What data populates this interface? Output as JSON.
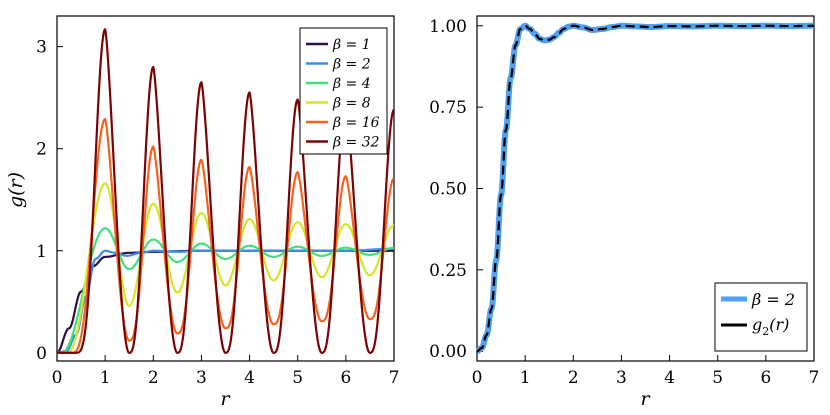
{
  "chart_data": [
    {
      "type": "line",
      "xlabel": "r",
      "ylabel": "g(r)",
      "xlim": [
        0,
        7
      ],
      "ylim": [
        -0.08,
        3.3
      ],
      "xticks": [
        "0",
        "1",
        "2",
        "3",
        "4",
        "5",
        "6",
        "7"
      ],
      "yticks": [
        "0",
        "1",
        "2",
        "3"
      ],
      "grid": false,
      "legend_position": "top-right",
      "series": [
        {
          "name": "β = 1",
          "color": "#2d1147",
          "x": [
            0.0,
            0.25,
            0.5,
            0.75,
            1.0,
            1.5,
            2.0,
            3.0,
            4.0,
            5.0,
            6.0,
            7.0
          ],
          "y": [
            0.0,
            0.24,
            0.6,
            0.85,
            0.94,
            0.98,
            0.99,
            1.0,
            1.0,
            1.0,
            1.0,
            1.0
          ]
        },
        {
          "name": "β = 2",
          "color": "#3a8ef0",
          "x": [
            0.0,
            0.2,
            0.4,
            0.6,
            0.8,
            1.0,
            1.2,
            1.45,
            1.75,
            2.0,
            2.5,
            3.0,
            4.0,
            5.0,
            6.0,
            7.0
          ],
          "y": [
            0.0,
            0.02,
            0.18,
            0.55,
            0.92,
            1.0,
            0.98,
            0.95,
            0.98,
            1.0,
            0.99,
            1.0,
            1.0,
            1.0,
            1.0,
            1.02
          ]
        },
        {
          "name": "β = 4",
          "color": "#40e07a",
          "peaks": [
            1.22,
            1.11,
            1.07,
            1.05,
            1.04,
            1.03,
            1.03
          ],
          "troughs": [
            0.82,
            0.89,
            0.92,
            0.94,
            0.95,
            0.96
          ]
        },
        {
          "name": "β = 8",
          "color": "#d4e52b",
          "peaks": [
            1.66,
            1.46,
            1.37,
            1.31,
            1.28,
            1.26,
            1.25
          ],
          "troughs": [
            0.46,
            0.59,
            0.66,
            0.71,
            0.74,
            0.76
          ]
        },
        {
          "name": "β = 16",
          "color": "#f4621e",
          "peaks": [
            2.29,
            2.02,
            1.89,
            1.82,
            1.77,
            1.73,
            1.71
          ],
          "troughs": [
            0.12,
            0.19,
            0.24,
            0.28,
            0.31,
            0.33
          ]
        },
        {
          "name": "β = 32",
          "color": "#7a0403",
          "peaks": [
            3.17,
            2.8,
            2.65,
            2.55,
            2.48,
            2.43,
            2.38
          ],
          "troughs": [
            0.0,
            0.0,
            0.0,
            0.0,
            0.0,
            0.0
          ]
        }
      ]
    },
    {
      "type": "line",
      "xlabel": "r",
      "ylabel": "",
      "xlim": [
        0,
        7
      ],
      "ylim": [
        -0.03,
        1.03
      ],
      "xticks": [
        "0",
        "1",
        "2",
        "3",
        "4",
        "5",
        "6",
        "7"
      ],
      "yticks": [
        "0.00",
        "0.25",
        "0.50",
        "0.75",
        "1.00"
      ],
      "grid": false,
      "legend_position": "bottom-right",
      "series": [
        {
          "name": "β = 2",
          "color": "#4ea1f3",
          "style": "solid-thick"
        },
        {
          "name": "g2(r)",
          "color": "#000000",
          "style": "dashed"
        }
      ],
      "x": [
        0.0,
        0.1,
        0.2,
        0.3,
        0.4,
        0.5,
        0.6,
        0.7,
        0.8,
        0.9,
        1.0,
        1.1,
        1.2,
        1.3,
        1.4,
        1.5,
        1.6,
        1.7,
        1.8,
        1.9,
        2.0,
        2.2,
        2.4,
        2.6,
        2.8,
        3.0,
        3.3,
        3.6,
        4.0,
        4.5,
        5.0,
        5.5,
        6.0,
        6.5,
        7.0
      ],
      "y": [
        0.0,
        0.01,
        0.05,
        0.13,
        0.28,
        0.48,
        0.68,
        0.84,
        0.94,
        0.99,
        1.0,
        0.99,
        0.975,
        0.96,
        0.955,
        0.957,
        0.965,
        0.978,
        0.99,
        0.997,
        1.0,
        0.995,
        0.987,
        0.99,
        0.996,
        1.0,
        0.998,
        0.996,
        0.999,
        0.998,
        1.0,
        0.999,
        1.0,
        0.999,
        1.0
      ]
    }
  ],
  "legend_labels": {
    "left": [
      "β = 1",
      "β = 2",
      "β = 4",
      "β = 8",
      "β = 16",
      "β = 32"
    ],
    "right": [
      "β = 2",
      "g2(r)"
    ]
  }
}
